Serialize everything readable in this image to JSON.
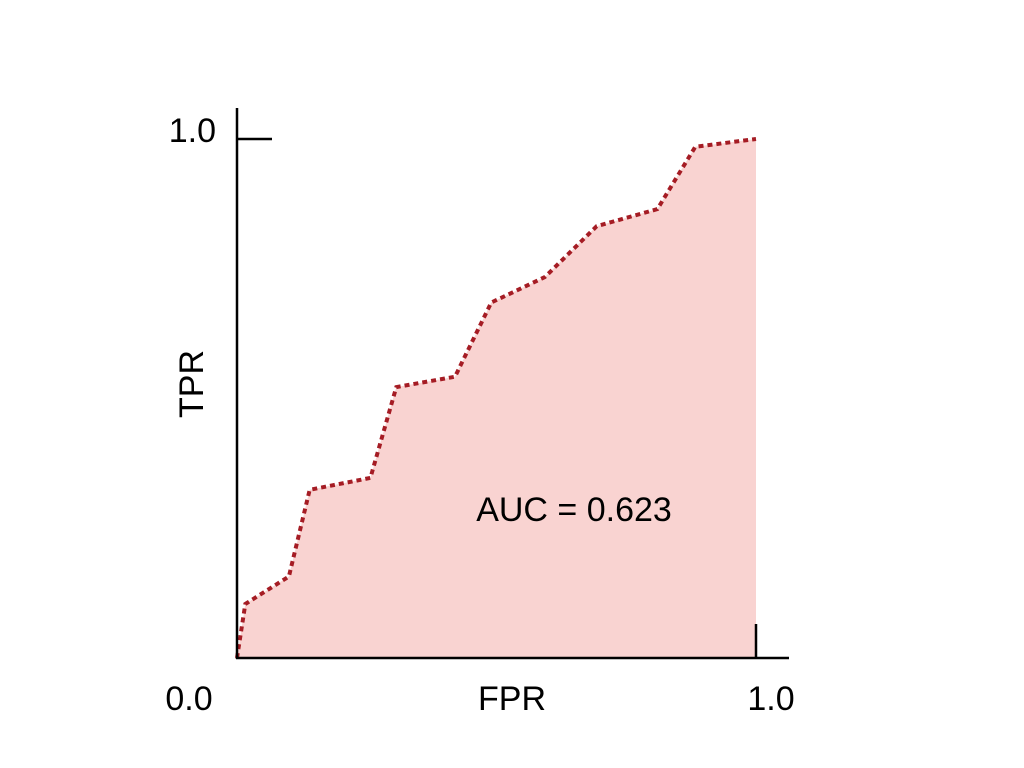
{
  "chart_data": {
    "type": "area",
    "title": "",
    "xlabel": "FPR",
    "ylabel": "TPR",
    "xlim": [
      0,
      1
    ],
    "ylim": [
      0,
      1
    ],
    "x_tick_labels": [
      "0.0",
      "1.0"
    ],
    "y_tick_labels": [
      "1.0"
    ],
    "grid": false,
    "annotation": "AUC = 0.623",
    "line_style": "dotted",
    "colors": {
      "line": "#a51c24",
      "fill": "#f9d3d1",
      "axis": "#000000"
    },
    "x": [
      0.0,
      0.016,
      0.1,
      0.14,
      0.257,
      0.307,
      0.42,
      0.49,
      0.593,
      0.693,
      0.81,
      0.883,
      1.0
    ],
    "y": [
      0.0,
      0.104,
      0.157,
      0.324,
      0.347,
      0.522,
      0.542,
      0.685,
      0.734,
      0.832,
      0.865,
      0.985,
      1.0
    ]
  }
}
